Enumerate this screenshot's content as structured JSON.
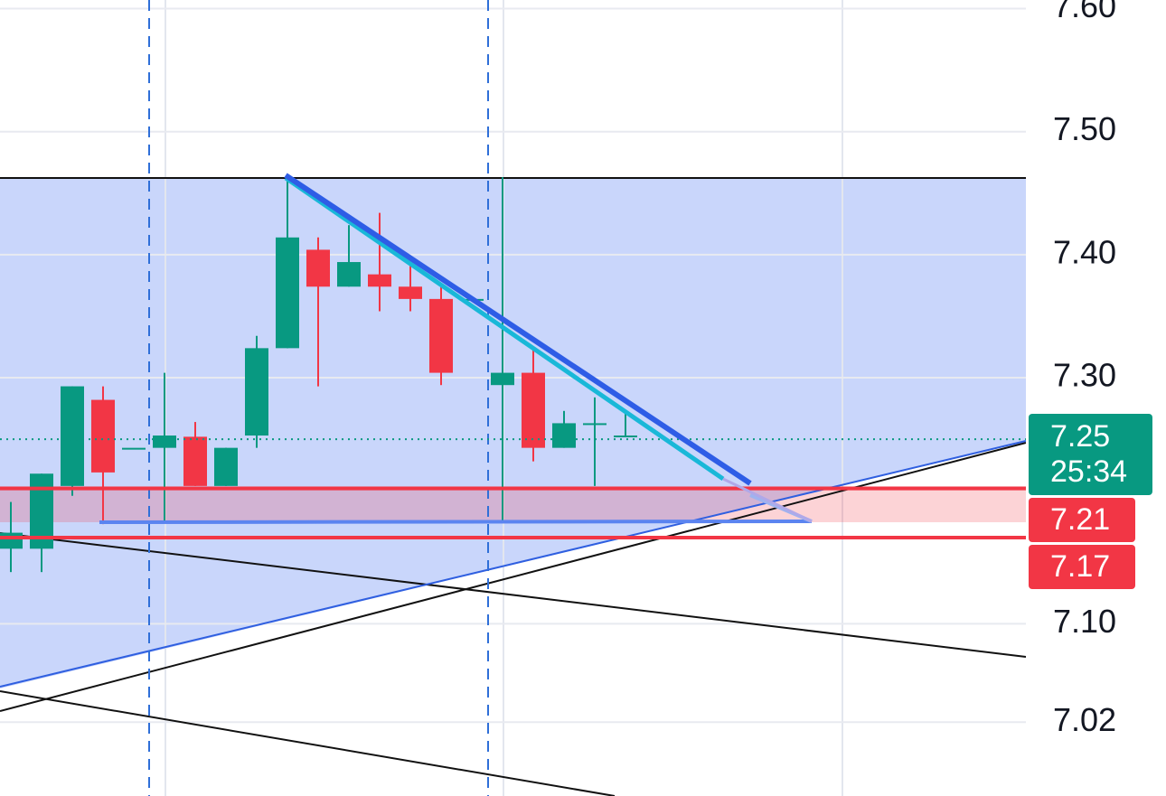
{
  "chart_data": {
    "type": "candlestick",
    "categories": [
      null,
      null,
      null,
      null,
      null,
      null,
      null,
      null,
      null,
      null,
      null,
      null,
      null,
      null,
      null,
      null,
      null,
      null,
      null,
      null,
      null
    ],
    "open": [
      7.161,
      7.161,
      7.212,
      7.282,
      7.243,
      7.243,
      7.252,
      7.212,
      7.253,
      7.324,
      7.404,
      7.374,
      7.384,
      7.374,
      7.364,
      7.364,
      7.294,
      7.304,
      7.243,
      7.263,
      7.253
    ],
    "high": [
      7.199,
      7.222,
      7.293,
      7.293,
      7.243,
      7.304,
      7.264,
      7.243,
      7.334,
      7.463,
      7.414,
      7.424,
      7.434,
      7.394,
      7.374,
      7.364,
      7.463,
      7.324,
      7.273,
      7.284,
      7.273
    ],
    "low": [
      7.142,
      7.142,
      7.204,
      7.181,
      7.243,
      7.182,
      7.212,
      7.212,
      7.243,
      7.324,
      7.293,
      7.374,
      7.354,
      7.354,
      7.294,
      7.364,
      7.182,
      7.232,
      7.243,
      7.212,
      7.253
    ],
    "close": [
      7.174,
      7.222,
      7.293,
      7.223,
      7.243,
      7.253,
      7.212,
      7.243,
      7.324,
      7.414,
      7.374,
      7.394,
      7.374,
      7.364,
      7.304,
      7.364,
      7.304,
      7.243,
      7.263,
      7.263,
      7.253
    ],
    "up_color": "#089981",
    "down_color": "#f23645",
    "ylim": [
      6.96,
      7.607
    ],
    "yticks": [
      {
        "value": 7.6,
        "label": "7.60"
      },
      {
        "value": 7.5,
        "label": "7.50"
      },
      {
        "value": 7.4,
        "label": "7.40"
      },
      {
        "value": 7.3,
        "label": "7.30"
      },
      {
        "value": 7.1,
        "label": "7.10"
      },
      7.02
    ],
    "grid": true,
    "price_lines": [
      {
        "value": 7.25,
        "color": "#089981",
        "countdown": "25:34"
      },
      {
        "value": 7.21,
        "color": "#f23645"
      },
      {
        "value": 7.17,
        "color": "#f23645"
      }
    ]
  }
}
